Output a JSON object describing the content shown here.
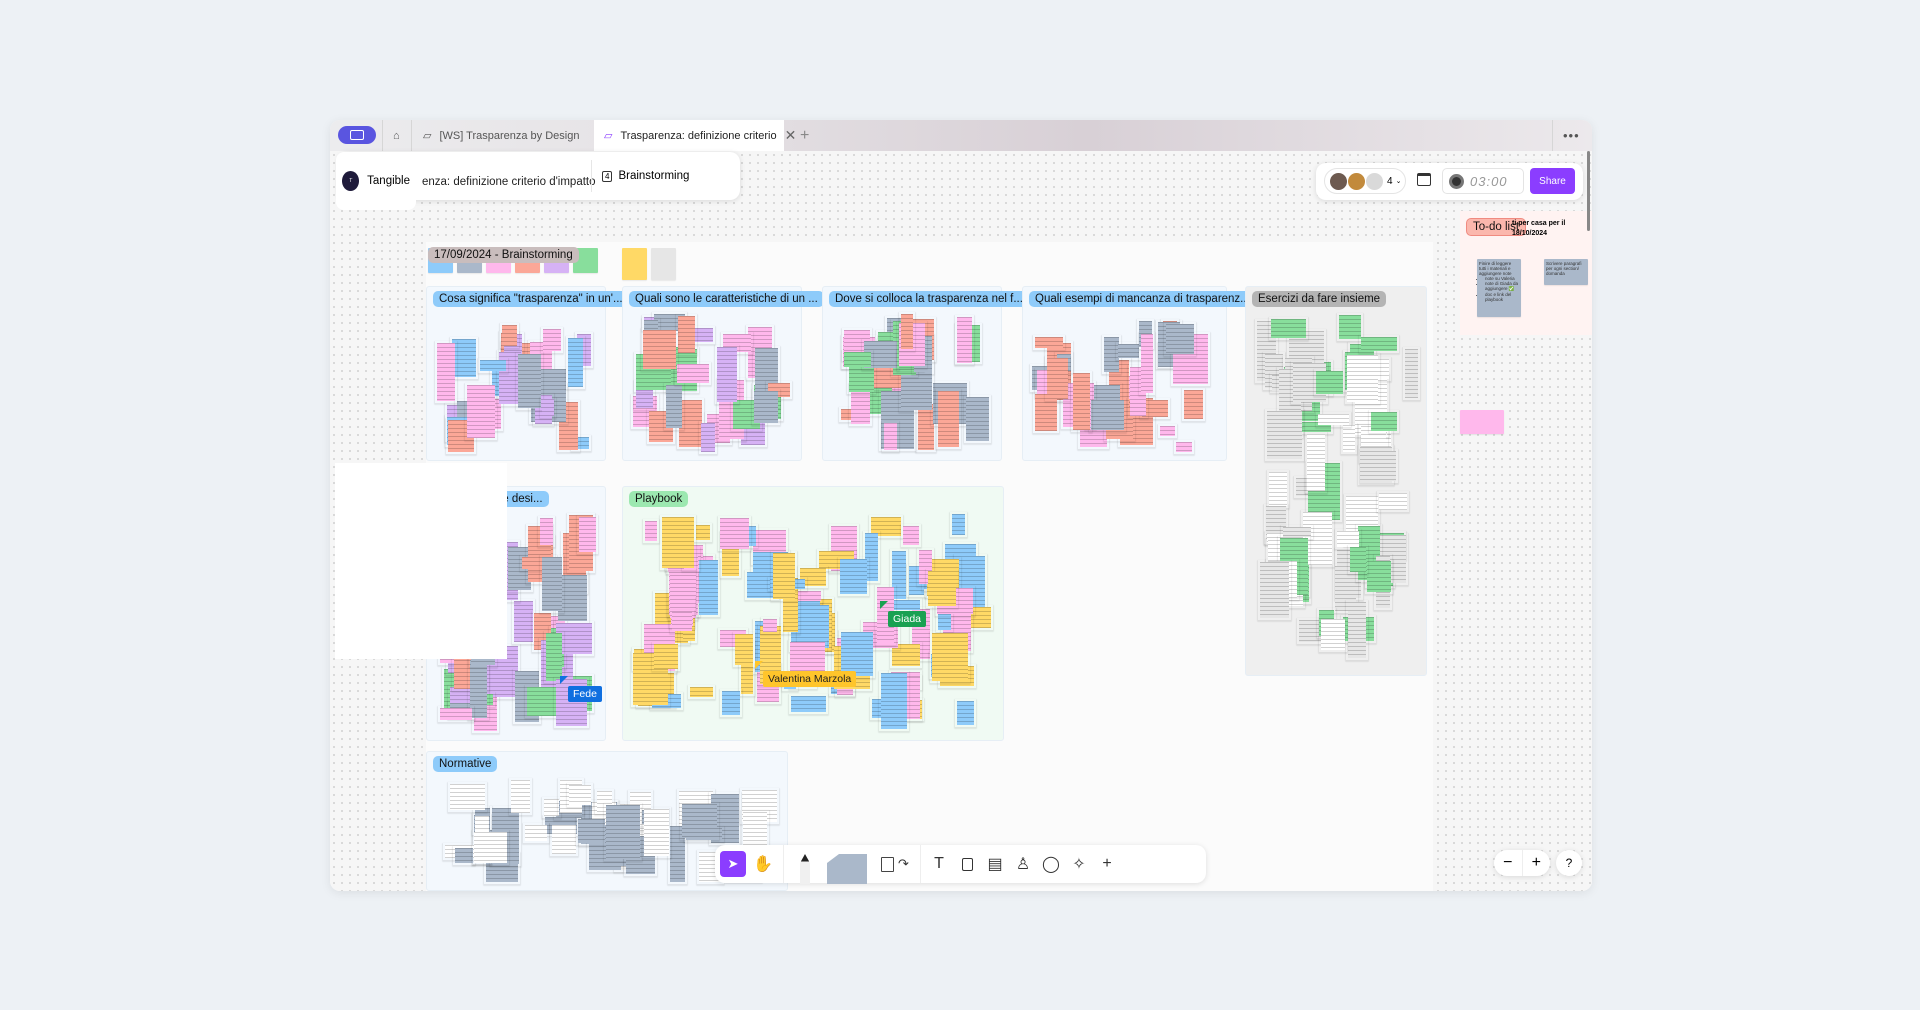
{
  "tabs": [
    {
      "label": "[WS] Trasparenza by Design Worksho",
      "active": false
    },
    {
      "label": "Trasparenza: definizione criterio",
      "active": true
    }
  ],
  "workspace": {
    "name": "Tangible",
    "logo_text": "Tangible"
  },
  "board": {
    "title": "enza: definizione criterio d'impatto",
    "frame_count": "4",
    "frame_label": "Brainstorming"
  },
  "collab": {
    "count": "4",
    "timer": "03:00",
    "share_label": "Share",
    "accent": "#8b3dff"
  },
  "session": {
    "title": "17/09/2024 - Brainstorming"
  },
  "frames": [
    {
      "title": "Cosa significa \"trasparenza\" in un'...",
      "title_color": "#8ecbfa",
      "bg": "#f3f8fd",
      "note_colors": [
        "#8ecbfa",
        "#d6b2f5",
        "#ffb8ec",
        "#fba797",
        "#aab8ca"
      ]
    },
    {
      "title": "Quali sono le caratteristiche di un ...",
      "title_color": "#8ecbfa",
      "bg": "#f3f8fd",
      "note_colors": [
        "#d6b2f5",
        "#ffb8ec",
        "#fba797",
        "#88de9c",
        "#aab8ca"
      ]
    },
    {
      "title": "Dove si colloca la trasparenza nel f...",
      "title_color": "#8ecbfa",
      "bg": "#f3f8fd",
      "note_colors": [
        "#ffb8ec",
        "#fba797",
        "#88de9c",
        "#aab8ca"
      ]
    },
    {
      "title": "Quali esempi di mancanza di trasparenz...",
      "title_color": "#8ecbfa",
      "bg": "#f3f8fd",
      "note_colors": [
        "#ffb8ec",
        "#fba797",
        "#aab8ca"
      ]
    },
    {
      "title": "Esercizi da fare insieme",
      "title_color": "#b4b4b4",
      "bg": "#efefef",
      "note_colors": [
        "#e6e6e6",
        "#88de9c",
        "#ffffff"
      ]
    },
    {
      "title": "fare noi come desi...",
      "title_color": "#8ecbfa",
      "bg": "#f3f8fd",
      "note_colors": [
        "#d6b2f5",
        "#ffb8ec",
        "#fba797",
        "#88de9c",
        "#aab8ca"
      ]
    },
    {
      "title": "Playbook",
      "title_color": "#9ce8b0",
      "bg": "#f0faf3",
      "note_colors": [
        "#8ecbfa",
        "#ffd966",
        "#ffb8ec"
      ]
    },
    {
      "title": "Normative",
      "title_color": "#8ecbfa",
      "bg": "#f3f8fd",
      "note_colors": [
        "#aab8ca",
        "#ffffff"
      ]
    }
  ],
  "todo": {
    "title": "To-do list",
    "heading": "ti per casa per il 18/10/2024",
    "notes": [
      "Finire di leggere tutti i materiali e aggiungere note",
      "Scrivere paragrafi per ogni section/ domanda"
    ],
    "bullets": [
      "note su Valeria",
      "note di Giada da aggiungere ✅",
      "doc e link del playbook"
    ]
  },
  "cursors": [
    {
      "name": "Giada",
      "color": "#1aa152",
      "text_color": "#ffffff"
    },
    {
      "name": "Valentina Marzola",
      "color": "#ffc52b",
      "text_color": "#222222"
    },
    {
      "name": "Fede",
      "color": "#0f6fe0",
      "text_color": "#ffffff"
    }
  ],
  "toolbar": {
    "tools": [
      "select",
      "hand",
      "pen",
      "sticky-notes",
      "shapes",
      "connector",
      "text",
      "frame",
      "table",
      "stamp",
      "comment",
      "ai-sparkle",
      "more"
    ]
  },
  "zoom": {
    "minus": "−",
    "plus": "+",
    "help": "?"
  }
}
